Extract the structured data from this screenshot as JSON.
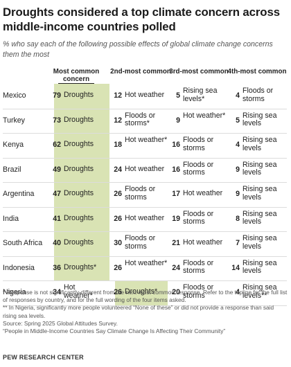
{
  "title": "Droughts considered a top climate concern across middle-income countries polled",
  "subtitle": "% who say each of the following possible effects of global climate change concerns them the most",
  "chart_data": {
    "type": "table",
    "columns": [
      "Most common concern",
      "2nd-most common",
      "3rd-most common",
      "4th-most common"
    ],
    "rows": [
      {
        "country": "Mexico",
        "cells": [
          {
            "value": 79,
            "label": "Droughts"
          },
          {
            "value": 12,
            "label": "Hot weather"
          },
          {
            "value": 5,
            "label": "Rising sea levels*"
          },
          {
            "value": 4,
            "label": "Floods or storms"
          }
        ]
      },
      {
        "country": "Turkey",
        "cells": [
          {
            "value": 73,
            "label": "Droughts"
          },
          {
            "value": 12,
            "label": "Floods or storms*"
          },
          {
            "value": 9,
            "label": "Hot weather*"
          },
          {
            "value": 5,
            "label": "Rising sea levels"
          }
        ]
      },
      {
        "country": "Kenya",
        "cells": [
          {
            "value": 62,
            "label": "Droughts"
          },
          {
            "value": 18,
            "label": "Hot weather*"
          },
          {
            "value": 16,
            "label": "Floods or storms"
          },
          {
            "value": 4,
            "label": "Rising sea levels"
          }
        ]
      },
      {
        "country": "Brazil",
        "cells": [
          {
            "value": 49,
            "label": "Droughts"
          },
          {
            "value": 24,
            "label": "Hot weather"
          },
          {
            "value": 16,
            "label": "Floods or storms"
          },
          {
            "value": 9,
            "label": "Rising sea levels"
          }
        ]
      },
      {
        "country": "Argentina",
        "cells": [
          {
            "value": 47,
            "label": "Droughts"
          },
          {
            "value": 26,
            "label": "Floods or storms"
          },
          {
            "value": 17,
            "label": "Hot weather"
          },
          {
            "value": 9,
            "label": "Rising sea levels"
          }
        ]
      },
      {
        "country": "India",
        "cells": [
          {
            "value": 41,
            "label": "Droughts"
          },
          {
            "value": 26,
            "label": "Hot weather"
          },
          {
            "value": 19,
            "label": "Floods or storms"
          },
          {
            "value": 8,
            "label": "Rising sea levels"
          }
        ]
      },
      {
        "country": "South Africa",
        "cells": [
          {
            "value": 40,
            "label": "Droughts"
          },
          {
            "value": 30,
            "label": "Floods or storms"
          },
          {
            "value": 21,
            "label": "Hot weather"
          },
          {
            "value": 7,
            "label": "Rising sea levels"
          }
        ]
      },
      {
        "country": "Indonesia",
        "cells": [
          {
            "value": 36,
            "label": "Droughts*"
          },
          {
            "value": 26,
            "label": "Hot weather*"
          },
          {
            "value": 24,
            "label": "Floods or storms"
          },
          {
            "value": 14,
            "label": "Rising sea levels"
          }
        ]
      },
      {
        "country": "Nigeria",
        "cells": [
          {
            "value": 34,
            "label": "Hot weather*"
          },
          {
            "value": 26,
            "label": "Droughts*"
          },
          {
            "value": 20,
            "label": "Floods or storms"
          },
          {
            "value": 4,
            "label": "Rising sea levels**"
          }
        ]
      }
    ],
    "highlight_label": "Droughts",
    "highlight_color": "#d9e3b4"
  },
  "notes": [
    "* Response is not significantly different from the next-most common response. Refer to the topline for the full list of responses by country, and for the full wording of the four items asked.",
    "** In Nigeria, significantly more people volunteered “None of these” or did not provide a response than said rising sea levels.",
    "Source: Spring 2025 Global Attitudes Survey.",
    "“People in Middle-Income Countries Say Climate Change Is Affecting Their Community”"
  ],
  "brand": "PEW RESEARCH CENTER"
}
